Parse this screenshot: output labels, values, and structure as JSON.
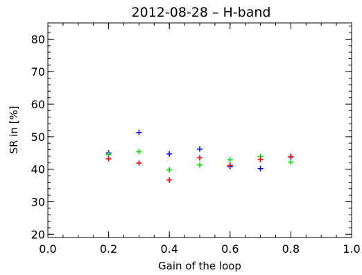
{
  "chart_data": {
    "type": "scatter",
    "title": "2012-08-28 – H-band",
    "xlabel": "Gain of the loop",
    "ylabel": "SR in [%]",
    "xlim": [
      0.0,
      1.0
    ],
    "ylim": [
      19,
      85
    ],
    "xticks": [
      0.0,
      0.2,
      0.4,
      0.6,
      0.8,
      1.0
    ],
    "xtick_labels": [
      "0.0",
      "0.2",
      "0.4",
      "0.6",
      "0.8",
      "1.0"
    ],
    "yticks": [
      20,
      30,
      40,
      50,
      60,
      70,
      80
    ],
    "ytick_labels": [
      "20",
      "30",
      "40",
      "50",
      "60",
      "70",
      "80"
    ],
    "marker": "plus",
    "grid": false,
    "series": [
      {
        "color": "#0000ff",
        "points": [
          {
            "x": 0.2,
            "y": 45.0
          },
          {
            "x": 0.3,
            "y": 51.3
          },
          {
            "x": 0.4,
            "y": 44.7
          },
          {
            "x": 0.5,
            "y": 46.2
          },
          {
            "x": 0.6,
            "y": 40.8
          },
          {
            "x": 0.7,
            "y": 40.2
          },
          {
            "x": 0.8,
            "y": 43.8
          }
        ]
      },
      {
        "color": "#00e000",
        "points": [
          {
            "x": 0.2,
            "y": 44.5
          },
          {
            "x": 0.3,
            "y": 45.4
          },
          {
            "x": 0.4,
            "y": 39.8
          },
          {
            "x": 0.5,
            "y": 41.3
          },
          {
            "x": 0.6,
            "y": 42.9
          },
          {
            "x": 0.7,
            "y": 43.9
          },
          {
            "x": 0.8,
            "y": 42.2
          }
        ]
      },
      {
        "color": "#ff0000",
        "points": [
          {
            "x": 0.2,
            "y": 43.2
          },
          {
            "x": 0.3,
            "y": 41.9
          },
          {
            "x": 0.4,
            "y": 36.7
          },
          {
            "x": 0.5,
            "y": 43.5
          },
          {
            "x": 0.6,
            "y": 41.2
          },
          {
            "x": 0.7,
            "y": 43.0
          },
          {
            "x": 0.8,
            "y": 43.9
          }
        ]
      }
    ]
  }
}
